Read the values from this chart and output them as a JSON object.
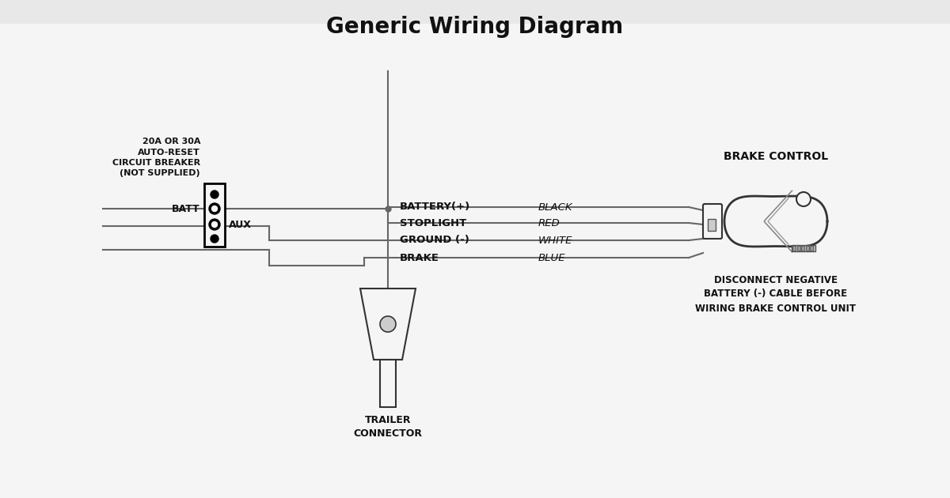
{
  "title": "Generic Wiring Diagram",
  "title_fontsize": 20,
  "title_fontweight": "bold",
  "diagram_bg": "#e8e8e8",
  "inner_bg": "#f5f5f5",
  "line_color": "#666666",
  "line_width": 1.5,
  "labels": {
    "battery_plus": "BATTERY(+)",
    "stoplight": "STOPLIGHT",
    "ground": "GROUND (-)",
    "brake": "BRAKE",
    "black": "BLACK",
    "red": "RED",
    "white": "WHITE",
    "blue": "BLUE",
    "batt": "BATT",
    "aux": "AUX",
    "brake_control": "BRAKE CONTROL",
    "trailer_connector": "TRAILER\nCONNECTOR",
    "circuit_breaker": "20A OR 30A\nAUTO-RESET\nCIRCUIT BREAKER\n(NOT SUPPLIED)",
    "disconnect": "DISCONNECT NEGATIVE\nBATTERY (-) CABLE BEFORE\nWIRING BRAKE CONTROL UNIT"
  },
  "colors": {
    "text_normal": "#111111",
    "text_italic": "#444444",
    "wire": "#666666",
    "component": "#333333"
  }
}
